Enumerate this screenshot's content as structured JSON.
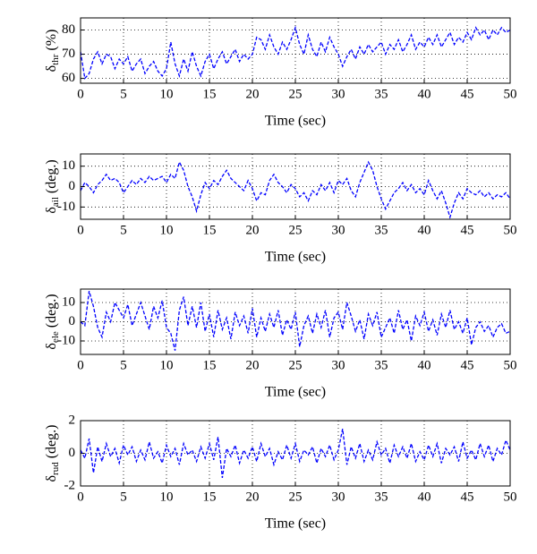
{
  "chart_data": [
    {
      "type": "line",
      "color": "#0000ff",
      "line_style": "dashed",
      "grid": true,
      "ylabel": {
        "symbol": "δ",
        "sub": "thr",
        "unit": "(%)"
      },
      "xlabel": "Time (sec)",
      "xlim": [
        0,
        50
      ],
      "xticks": [
        0,
        5,
        10,
        15,
        20,
        25,
        30,
        35,
        40,
        45,
        50
      ],
      "ylim": [
        58,
        85
      ],
      "yticks": [
        60,
        70,
        80
      ],
      "x": [
        0,
        0.5,
        1,
        1.5,
        2,
        2.5,
        3,
        3.5,
        4,
        4.5,
        5,
        5.5,
        6,
        6.5,
        7,
        7.5,
        8,
        8.5,
        9,
        9.5,
        10,
        10.5,
        11,
        11.5,
        12,
        12.5,
        13,
        13.5,
        14,
        14.5,
        15,
        15.5,
        16,
        16.5,
        17,
        17.5,
        18,
        18.5,
        19,
        19.5,
        20,
        20.5,
        21,
        21.5,
        22,
        22.5,
        23,
        23.5,
        24,
        24.5,
        25,
        25.5,
        26,
        26.5,
        27,
        27.5,
        28,
        28.5,
        29,
        29.5,
        30,
        30.5,
        31,
        31.5,
        32,
        32.5,
        33,
        33.5,
        34,
        34.5,
        35,
        35.5,
        36,
        36.5,
        37,
        37.5,
        38,
        38.5,
        39,
        39.5,
        40,
        40.5,
        41,
        41.5,
        42,
        42.5,
        43,
        43.5,
        44,
        44.5,
        45,
        45.5,
        46,
        46.5,
        47,
        47.5,
        48,
        48.5,
        49,
        49.5,
        50
      ],
      "values": [
        71,
        60,
        62,
        68,
        71,
        66,
        70,
        69,
        64,
        68,
        66,
        69,
        63,
        66,
        68,
        62,
        65,
        67,
        63,
        61,
        64,
        75,
        66,
        61,
        68,
        63,
        71,
        65,
        61,
        67,
        70,
        64,
        68,
        71,
        66,
        69,
        72,
        67,
        70,
        68,
        70,
        77,
        76,
        72,
        78,
        73,
        70,
        75,
        72,
        76,
        81,
        74,
        70,
        78,
        72,
        69,
        75,
        71,
        77,
        73,
        70,
        65,
        69,
        72,
        68,
        73,
        70,
        74,
        71,
        73,
        75,
        70,
        74,
        72,
        76,
        71,
        74,
        78,
        72,
        75,
        73,
        77,
        74,
        78,
        73,
        76,
        79,
        74,
        77,
        75,
        79,
        76,
        81,
        78,
        80,
        76,
        80,
        78,
        81,
        79,
        80
      ]
    },
    {
      "type": "line",
      "color": "#0000ff",
      "line_style": "dashed",
      "grid": true,
      "ylabel": {
        "symbol": "δ",
        "sub": "ail",
        "unit": "(deg.)"
      },
      "xlabel": "Time (sec)",
      "xlim": [
        0,
        50
      ],
      "xticks": [
        0,
        5,
        10,
        15,
        20,
        25,
        30,
        35,
        40,
        45,
        50
      ],
      "ylim": [
        -16,
        16
      ],
      "yticks": [
        -10,
        0,
        10
      ],
      "x": [
        0,
        0.5,
        1,
        1.5,
        2,
        2.5,
        3,
        3.5,
        4,
        4.5,
        5,
        5.5,
        6,
        6.5,
        7,
        7.5,
        8,
        8.5,
        9,
        9.5,
        10,
        10.5,
        11,
        11.5,
        12,
        12.5,
        13,
        13.5,
        14,
        14.5,
        15,
        15.5,
        16,
        16.5,
        17,
        17.5,
        18,
        18.5,
        19,
        19.5,
        20,
        20.5,
        21,
        21.5,
        22,
        22.5,
        23,
        23.5,
        24,
        24.5,
        25,
        25.5,
        26,
        26.5,
        27,
        27.5,
        28,
        28.5,
        29,
        29.5,
        30,
        30.5,
        31,
        31.5,
        32,
        32.5,
        33,
        33.5,
        34,
        34.5,
        35,
        35.5,
        36,
        36.5,
        37,
        37.5,
        38,
        38.5,
        39,
        39.5,
        40,
        40.5,
        41,
        41.5,
        42,
        42.5,
        43,
        43.5,
        44,
        44.5,
        45,
        45.5,
        46,
        46.5,
        47,
        47.5,
        48,
        48.5,
        49,
        49.5,
        50
      ],
      "values": [
        -2,
        2,
        0,
        -3,
        1,
        3,
        6,
        3,
        4,
        2,
        -3,
        0,
        3,
        1,
        4,
        2,
        5,
        3,
        4,
        5,
        2,
        6,
        4,
        12,
        8,
        0,
        -5,
        -12,
        -4,
        2,
        -1,
        3,
        1,
        5,
        8,
        4,
        2,
        0,
        -2,
        3,
        -1,
        -7,
        -3,
        -4,
        3,
        6,
        2,
        0,
        -3,
        1,
        -1,
        -5,
        -3,
        -7,
        -2,
        -4,
        1,
        -2,
        2,
        -3,
        3,
        1,
        4,
        -2,
        -5,
        2,
        7,
        12,
        8,
        0,
        -6,
        -11,
        -7,
        -3,
        -1,
        2,
        -2,
        1,
        -3,
        -1,
        -4,
        3,
        -2,
        -6,
        -2,
        -8,
        -15,
        -8,
        -3,
        -6,
        -1,
        -3,
        -4,
        -2,
        -5,
        -3,
        -6,
        -4,
        -5,
        -3,
        -6
      ]
    },
    {
      "type": "line",
      "color": "#0000ff",
      "line_style": "dashed",
      "grid": true,
      "ylabel": {
        "symbol": "δ",
        "sub": "ele",
        "unit": "(deg.)"
      },
      "xlabel": "Time (sec)",
      "xlim": [
        0,
        50
      ],
      "xticks": [
        0,
        5,
        10,
        15,
        20,
        25,
        30,
        35,
        40,
        45,
        50
      ],
      "ylim": [
        -17,
        17
      ],
      "yticks": [
        -10,
        0,
        10
      ],
      "x": [
        0,
        0.5,
        1,
        1.5,
        2,
        2.5,
        3,
        3.5,
        4,
        4.5,
        5,
        5.5,
        6,
        6.5,
        7,
        7.5,
        8,
        8.5,
        9,
        9.5,
        10,
        10.5,
        11,
        11.5,
        12,
        12.5,
        13,
        13.5,
        14,
        14.5,
        15,
        15.5,
        16,
        16.5,
        17,
        17.5,
        18,
        18.5,
        19,
        19.5,
        20,
        20.5,
        21,
        21.5,
        22,
        22.5,
        23,
        23.5,
        24,
        24.5,
        25,
        25.5,
        26,
        26.5,
        27,
        27.5,
        28,
        28.5,
        29,
        29.5,
        30,
        30.5,
        31,
        31.5,
        32,
        32.5,
        33,
        33.5,
        34,
        34.5,
        35,
        35.5,
        36,
        36.5,
        37,
        37.5,
        38,
        38.5,
        39,
        39.5,
        40,
        40.5,
        41,
        41.5,
        42,
        42.5,
        43,
        43.5,
        44,
        44.5,
        45,
        45.5,
        46,
        46.5,
        47,
        47.5,
        48,
        48.5,
        49,
        49.5,
        50
      ],
      "values": [
        0,
        -2,
        16,
        8,
        -3,
        -8,
        5,
        0,
        10,
        6,
        2,
        9,
        -2,
        4,
        10,
        3,
        -4,
        8,
        2,
        11,
        -3,
        -6,
        -15,
        6,
        13,
        -2,
        8,
        -3,
        10,
        -5,
        4,
        -8,
        6,
        -4,
        2,
        -9,
        5,
        -2,
        3,
        -6,
        7,
        -8,
        2,
        -5,
        4,
        -3,
        6,
        -7,
        1,
        -4,
        5,
        -13,
        -2,
        3,
        -6,
        4,
        -3,
        6,
        -8,
        2,
        5,
        -4,
        10,
        3,
        -5,
        1,
        -9,
        4,
        -2,
        5,
        -8,
        -3,
        2,
        -6,
        6,
        -4,
        1,
        -10,
        3,
        -2,
        5,
        -5,
        1,
        -7,
        4,
        -3,
        6,
        -4,
        0,
        -6,
        2,
        -12,
        -3,
        0,
        -5,
        -2,
        -8,
        -3,
        -1,
        -6,
        -5
      ]
    },
    {
      "type": "line",
      "color": "#0000ff",
      "line_style": "dashed",
      "grid": true,
      "ylabel": {
        "symbol": "δ",
        "sub": "rud",
        "unit": "(deg.)"
      },
      "xlabel": "Time (sec)",
      "xlim": [
        0,
        50
      ],
      "xticks": [
        0,
        5,
        10,
        15,
        20,
        25,
        30,
        35,
        40,
        45,
        50
      ],
      "ylim": [
        -2,
        2
      ],
      "yticks": [
        -2,
        0,
        2
      ],
      "x": [
        0,
        0.5,
        1,
        1.5,
        2,
        2.5,
        3,
        3.5,
        4,
        4.5,
        5,
        5.5,
        6,
        6.5,
        7,
        7.5,
        8,
        8.5,
        9,
        9.5,
        10,
        10.5,
        11,
        11.5,
        12,
        12.5,
        13,
        13.5,
        14,
        14.5,
        15,
        15.5,
        16,
        16.5,
        17,
        17.5,
        18,
        18.5,
        19,
        19.5,
        20,
        20.5,
        21,
        21.5,
        22,
        22.5,
        23,
        23.5,
        24,
        24.5,
        25,
        25.5,
        26,
        26.5,
        27,
        27.5,
        28,
        28.5,
        29,
        29.5,
        30,
        30.5,
        31,
        31.5,
        32,
        32.5,
        33,
        33.5,
        34,
        34.5,
        35,
        35.5,
        36,
        36.5,
        37,
        37.5,
        38,
        38.5,
        39,
        39.5,
        40,
        40.5,
        41,
        41.5,
        42,
        42.5,
        43,
        43.5,
        44,
        44.5,
        45,
        45.5,
        46,
        46.5,
        47,
        47.5,
        48,
        48.5,
        49,
        49.5,
        50
      ],
      "values": [
        0.2,
        -0.3,
        0.9,
        -1.2,
        0.4,
        -0.5,
        0.6,
        -0.2,
        0.3,
        -0.6,
        0.5,
        -0.1,
        0.4,
        -0.5,
        0.2,
        -0.4,
        0.7,
        -0.3,
        0.1,
        -0.6,
        0.5,
        -0.2,
        0.3,
        -0.7,
        0.6,
        -0.1,
        0.2,
        -0.5,
        0.4,
        -0.3,
        0.6,
        -0.4,
        1.0,
        -1.5,
        0.3,
        -0.2,
        0.5,
        -0.6,
        0.2,
        -0.3,
        0.4,
        -0.5,
        0.6,
        -0.2,
        0.3,
        -0.7,
        0.1,
        -0.4,
        0.5,
        -0.3,
        0.6,
        -0.5,
        0.2,
        -0.1,
        0.4,
        -0.6,
        0.3,
        -0.2,
        0.5,
        -0.4,
        0.2,
        1.5,
        -0.7,
        0.4,
        -0.3,
        0.6,
        -0.5,
        0.2,
        -0.4,
        0.7,
        -0.1,
        0.3,
        -0.6,
        0.5,
        -0.2,
        0.4,
        -0.3,
        0.6,
        -0.5,
        0.1,
        -0.4,
        0.5,
        -0.2,
        0.6,
        -0.6,
        0.3,
        -0.1,
        0.4,
        -0.5,
        0.7,
        -0.3,
        0.2,
        -0.4,
        0.6,
        -0.2,
        0.5,
        -0.5,
        0.3,
        -0.1,
        0.8,
        0.2
      ]
    }
  ]
}
